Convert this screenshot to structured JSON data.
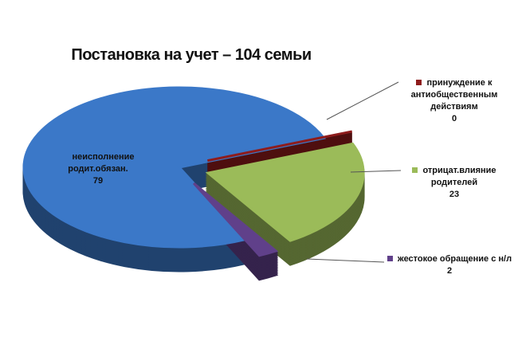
{
  "chart_data": {
    "type": "pie",
    "title": "Постановка на учет – 104  семьи",
    "categories": [
      "неисполнение родит.обязан.",
      "принуждение к антиобщественным действиям",
      "отрицат.влияние родителей",
      "жестокое обращение с н/л"
    ],
    "values": [
      79,
      0,
      23,
      2
    ],
    "colors": [
      "#3b78c8",
      "#8e1c1c",
      "#9bbb59",
      "#60408a"
    ]
  }
}
